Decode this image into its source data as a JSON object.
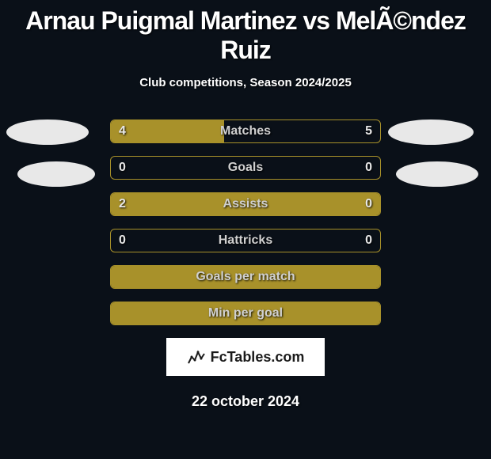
{
  "background_color": "#0a1018",
  "title": "Arnau Puigmal Martinez vs MelÃ©ndez Ruiz",
  "title_fontsize": 32,
  "subtitle": "Club competitions, Season 2024/2025",
  "subtitle_fontsize": 15,
  "bar_color": "#a8912a",
  "border_color": "#a8912a",
  "avatar_color": "#e8e8e8",
  "stats": [
    {
      "label": "Matches",
      "left_value": "4",
      "right_value": "5",
      "left_pct": 42,
      "right_pct": 0
    },
    {
      "label": "Goals",
      "left_value": "0",
      "right_value": "0",
      "left_pct": 0,
      "right_pct": 0
    },
    {
      "label": "Assists",
      "left_value": "2",
      "right_value": "0",
      "left_pct": 78,
      "right_pct": 22
    },
    {
      "label": "Hattricks",
      "left_value": "0",
      "right_value": "0",
      "left_pct": 0,
      "right_pct": 0
    },
    {
      "label": "Goals per match",
      "left_value": "",
      "right_value": "",
      "left_pct": 100,
      "right_pct": 0
    },
    {
      "label": "Min per goal",
      "left_value": "",
      "right_value": "",
      "left_pct": 100,
      "right_pct": 0
    }
  ],
  "logo_text": "FcTables.com",
  "date": "22 october 2024"
}
